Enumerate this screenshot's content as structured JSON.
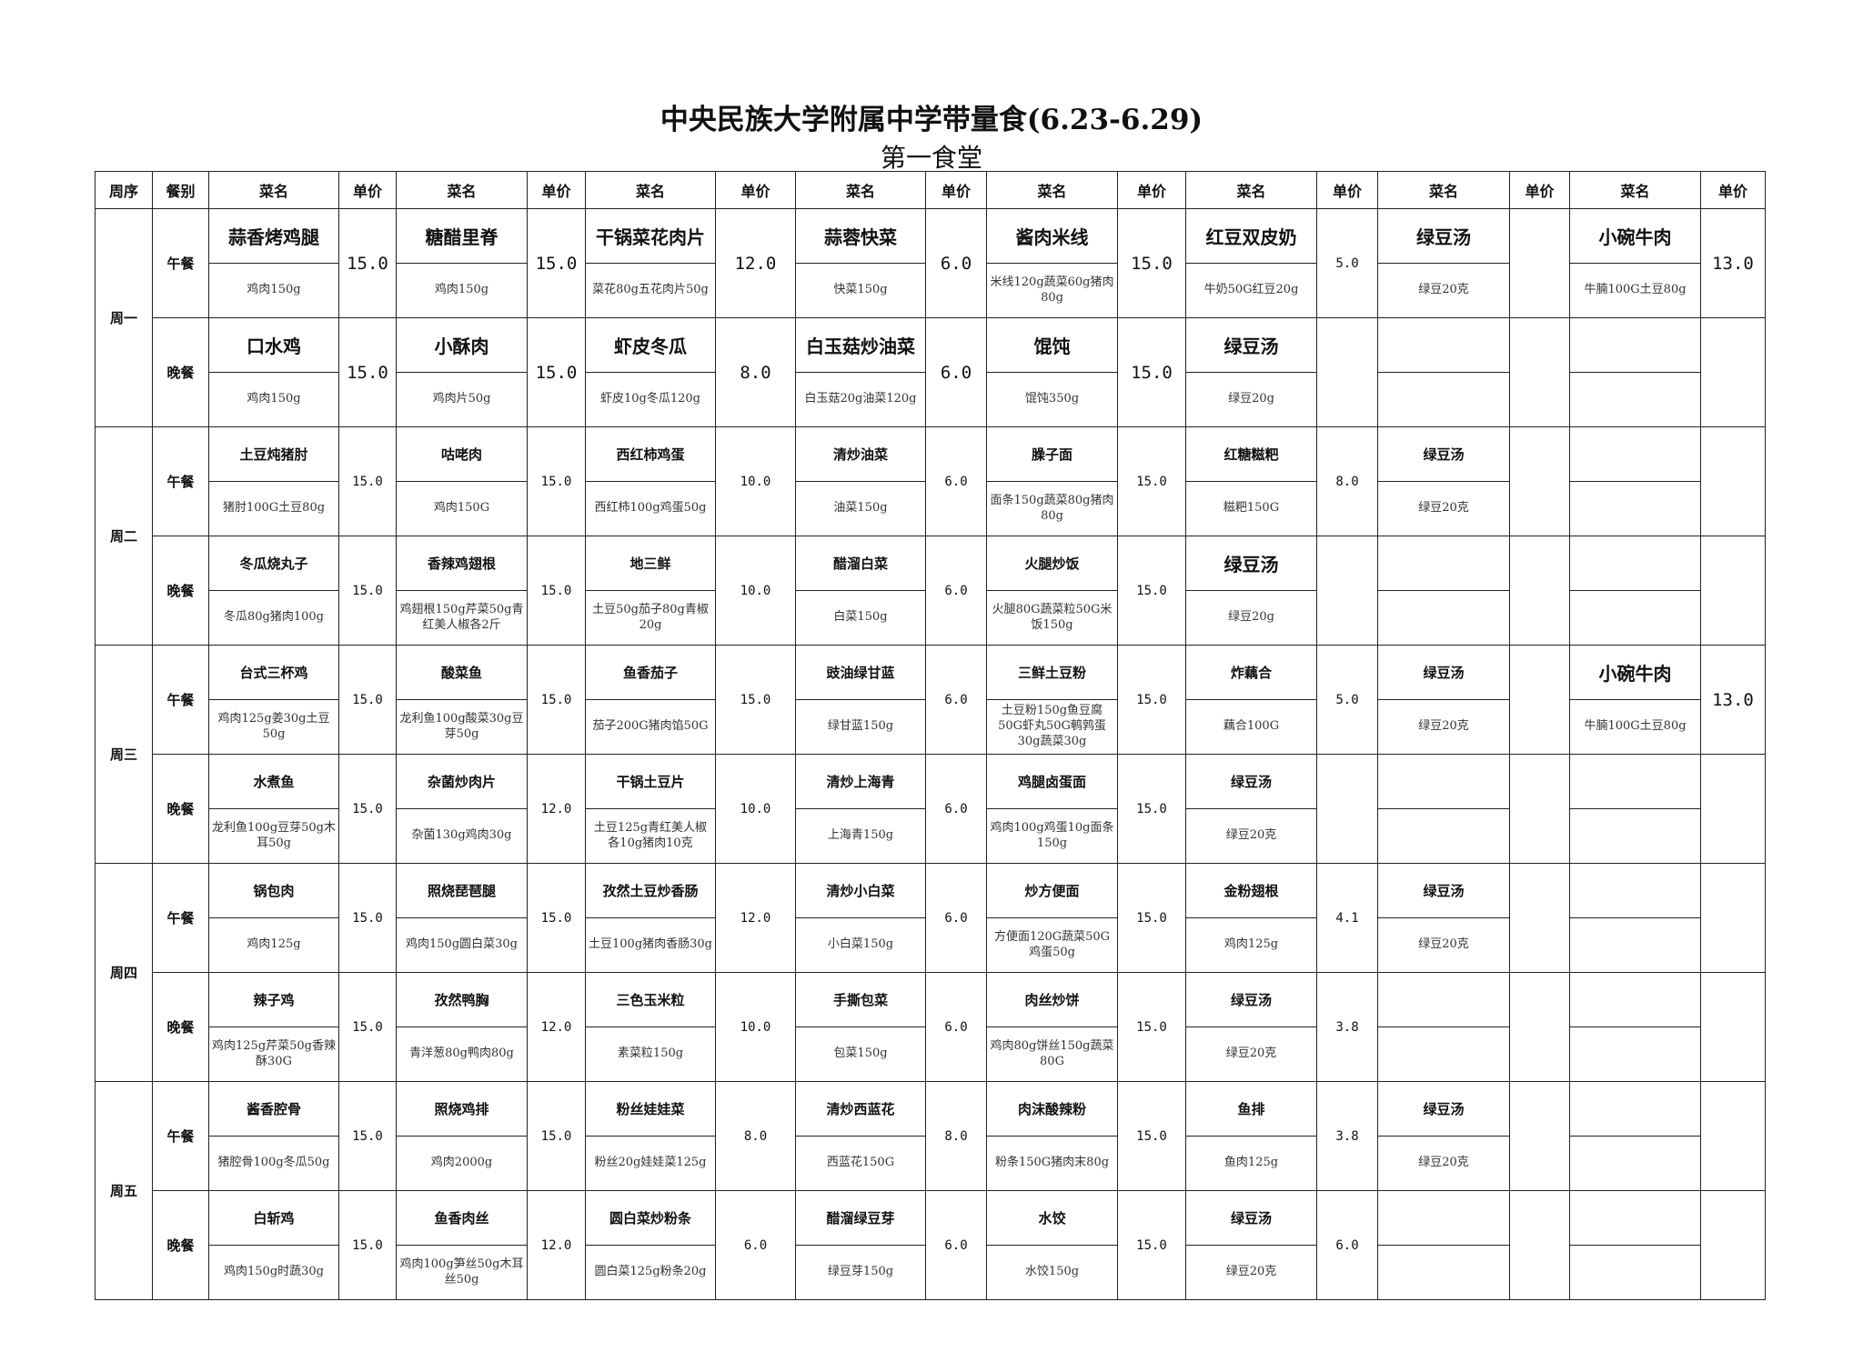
{
  "title": "中央民族大学附属中学带量食(6.23-6.29)",
  "subtitle": "第一食堂",
  "headers": {
    "week": "周序",
    "meal": "餐别",
    "dish": "菜名",
    "price": "单价"
  },
  "days": [
    {
      "label": "周一",
      "meals": [
        {
          "label": "午餐",
          "dishes": [
            {
              "name": "蒜香烤鸡腿",
              "desc": "鸡肉150g",
              "price": "15.0",
              "large": true
            },
            {
              "name": "糖醋里脊",
              "desc": "鸡肉150g",
              "price": "15.0",
              "large": true
            },
            {
              "name": "干锅菜花肉片",
              "desc": "菜花80g五花肉片50g",
              "price": "12.0",
              "large": true
            },
            {
              "name": "蒜蓉快菜",
              "desc": "快菜150g",
              "price": "6.0",
              "large": true
            },
            {
              "name": "酱肉米线",
              "desc": "米线120g蔬菜60g猪肉80g",
              "price": "15.0",
              "large": true
            },
            {
              "name": "红豆双皮奶",
              "desc": "牛奶50G红豆20g",
              "price": "5.0",
              "large": true
            },
            {
              "name": "绿豆汤",
              "desc": "绿豆20克",
              "price": "",
              "large": true
            },
            {
              "name": "小碗牛肉",
              "desc": "牛腩100G土豆80g",
              "price": "13.0",
              "large": true
            }
          ]
        },
        {
          "label": "晚餐",
          "dishes": [
            {
              "name": "口水鸡",
              "desc": "鸡肉150g",
              "price": "15.0",
              "large": true
            },
            {
              "name": "小酥肉",
              "desc": "鸡肉片50g",
              "price": "15.0",
              "large": true
            },
            {
              "name": "虾皮冬瓜",
              "desc": "虾皮10g冬瓜120g",
              "price": "8.0",
              "large": true
            },
            {
              "name": "白玉菇炒油菜",
              "desc": "白玉菇20g油菜120g",
              "price": "6.0",
              "large": true
            },
            {
              "name": "馄饨",
              "desc": "馄饨350g",
              "price": "15.0",
              "large": true
            },
            {
              "name": "绿豆汤",
              "desc": "绿豆20g",
              "price": "",
              "large": true
            },
            {
              "name": "",
              "desc": "",
              "price": ""
            },
            {
              "name": "",
              "desc": "",
              "price": ""
            }
          ]
        }
      ]
    },
    {
      "label": "周二",
      "meals": [
        {
          "label": "午餐",
          "dishes": [
            {
              "name": "土豆炖猪肘",
              "desc": "猪肘100G土豆80g",
              "price": "15.0"
            },
            {
              "name": "咕咾肉",
              "desc": "鸡肉150G",
              "price": "15.0"
            },
            {
              "name": "西红柿鸡蛋",
              "desc": "西红柿100g鸡蛋50g",
              "price": "10.0"
            },
            {
              "name": "清炒油菜",
              "desc": "油菜150g",
              "price": "6.0"
            },
            {
              "name": "臊子面",
              "desc": "面条150g蔬菜80g猪肉80g",
              "price": "15.0"
            },
            {
              "name": "红糖糍粑",
              "desc": "糍粑150G",
              "price": "8.0"
            },
            {
              "name": "绿豆汤",
              "desc": "绿豆20克",
              "price": ""
            },
            {
              "name": "",
              "desc": "",
              "price": ""
            }
          ]
        },
        {
          "label": "晚餐",
          "dishes": [
            {
              "name": "冬瓜烧丸子",
              "desc": "冬瓜80g猪肉100g",
              "price": "15.0"
            },
            {
              "name": "香辣鸡翅根",
              "desc": "鸡翅根150g芹菜50g青红美人椒各2斤",
              "price": "15.0"
            },
            {
              "name": "地三鲜",
              "desc": "土豆50g茄子80g青椒20g",
              "price": "10.0"
            },
            {
              "name": "醋溜白菜",
              "desc": "白菜150g",
              "price": "6.0"
            },
            {
              "name": "火腿炒饭",
              "desc": "火腿80G蔬菜粒50G米饭150g",
              "price": "15.0"
            },
            {
              "name": "绿豆汤",
              "desc": "绿豆20g",
              "price": "",
              "large": true
            },
            {
              "name": "",
              "desc": "",
              "price": ""
            },
            {
              "name": "",
              "desc": "",
              "price": ""
            }
          ]
        }
      ]
    },
    {
      "label": "周三",
      "meals": [
        {
          "label": "午餐",
          "dishes": [
            {
              "name": "台式三杯鸡",
              "desc": "鸡肉125g姜30g土豆50g",
              "price": "15.0"
            },
            {
              "name": "酸菜鱼",
              "desc": "龙利鱼100g酸菜30g豆芽50g",
              "price": "15.0"
            },
            {
              "name": "鱼香茄子",
              "desc": "茄子200G猪肉馅50G",
              "price": "15.0"
            },
            {
              "name": "豉油绿甘蓝",
              "desc": "绿甘蓝150g",
              "price": "6.0"
            },
            {
              "name": "三鲜土豆粉",
              "desc": "土豆粉150g鱼豆腐50G虾丸50G鹌鹑蛋30g蔬菜30g",
              "price": "15.0"
            },
            {
              "name": "炸藕合",
              "desc": "藕合100G",
              "price": "5.0"
            },
            {
              "name": "绿豆汤",
              "desc": "绿豆20克",
              "price": ""
            },
            {
              "name": "小碗牛肉",
              "desc": "牛腩100G土豆80g",
              "price": "13.0",
              "large": true
            }
          ]
        },
        {
          "label": "晚餐",
          "dishes": [
            {
              "name": "水煮鱼",
              "desc": "龙利鱼100g豆芽50g木耳50g",
              "price": "15.0"
            },
            {
              "name": "杂菌炒肉片",
              "desc": "杂菌130g鸡肉30g",
              "price": "12.0"
            },
            {
              "name": "干锅土豆片",
              "desc": "土豆125g青红美人椒各10g猪肉10克",
              "price": "10.0"
            },
            {
              "name": "清炒上海青",
              "desc": "上海青150g",
              "price": "6.0"
            },
            {
              "name": "鸡腿卤蛋面",
              "desc": "鸡肉100g鸡蛋10g面条150g",
              "price": "15.0"
            },
            {
              "name": "绿豆汤",
              "desc": "绿豆20克",
              "price": ""
            },
            {
              "name": "",
              "desc": "",
              "price": ""
            },
            {
              "name": "",
              "desc": "",
              "price": ""
            }
          ]
        }
      ]
    },
    {
      "label": "周四",
      "meals": [
        {
          "label": "午餐",
          "dishes": [
            {
              "name": "锅包肉",
              "desc": "鸡肉125g",
              "price": "15.0"
            },
            {
              "name": "照烧琵琶腿",
              "desc": "鸡肉150g圆白菜30g",
              "price": "15.0"
            },
            {
              "name": "孜然土豆炒香肠",
              "desc": "土豆100g猪肉香肠30g",
              "price": "12.0"
            },
            {
              "name": "清炒小白菜",
              "desc": "小白菜150g",
              "price": "6.0"
            },
            {
              "name": "炒方便面",
              "desc": "方便面120G蔬菜50G鸡蛋50g",
              "price": "15.0"
            },
            {
              "name": "金粉翅根",
              "desc": "鸡肉125g",
              "price": "4.1"
            },
            {
              "name": "绿豆汤",
              "desc": "绿豆20克",
              "price": ""
            },
            {
              "name": "",
              "desc": "",
              "price": ""
            }
          ]
        },
        {
          "label": "晚餐",
          "dishes": [
            {
              "name": "辣子鸡",
              "desc": "鸡肉125g芹菜50g香辣酥30G",
              "price": "15.0"
            },
            {
              "name": "孜然鸭胸",
              "desc": "青洋葱80g鸭肉80g",
              "price": "12.0"
            },
            {
              "name": "三色玉米粒",
              "desc": "素菜粒150g",
              "price": "10.0"
            },
            {
              "name": "手撕包菜",
              "desc": "包菜150g",
              "price": "6.0"
            },
            {
              "name": "肉丝炒饼",
              "desc": "鸡肉80g饼丝150g蔬菜80G",
              "price": "15.0"
            },
            {
              "name": "绿豆汤",
              "desc": "绿豆20克",
              "price": "3.8"
            },
            {
              "name": "",
              "desc": "",
              "price": ""
            },
            {
              "name": "",
              "desc": "",
              "price": ""
            }
          ]
        }
      ]
    },
    {
      "label": "周五",
      "meals": [
        {
          "label": "午餐",
          "dishes": [
            {
              "name": "酱香腔骨",
              "desc": "猪腔骨100g冬瓜50g",
              "price": "15.0"
            },
            {
              "name": "照烧鸡排",
              "desc": "鸡肉2000g",
              "price": "15.0"
            },
            {
              "name": "粉丝娃娃菜",
              "desc": "粉丝20g娃娃菜125g",
              "price": "8.0"
            },
            {
              "name": "清炒西蓝花",
              "desc": "西蓝花150G",
              "price": "8.0"
            },
            {
              "name": "肉沫酸辣粉",
              "desc": "粉条150G猪肉末80g",
              "price": "15.0"
            },
            {
              "name": "鱼排",
              "desc": "鱼肉125g",
              "price": "3.8"
            },
            {
              "name": "绿豆汤",
              "desc": "绿豆20克",
              "price": ""
            },
            {
              "name": "",
              "desc": "",
              "price": ""
            }
          ]
        },
        {
          "label": "晚餐",
          "dishes": [
            {
              "name": "白斩鸡",
              "desc": "鸡肉150g时蔬30g",
              "price": "15.0"
            },
            {
              "name": "鱼香肉丝",
              "desc": "鸡肉100g笋丝50g木耳丝50g",
              "price": "12.0"
            },
            {
              "name": "圆白菜炒粉条",
              "desc": "圆白菜125g粉条20g",
              "price": "6.0"
            },
            {
              "name": "醋溜绿豆芽",
              "desc": "绿豆芽150g",
              "price": "6.0"
            },
            {
              "name": "水饺",
              "desc": "水饺150g",
              "price": "15.0"
            },
            {
              "name": "绿豆汤",
              "desc": "绿豆20克",
              "price": "6.0"
            },
            {
              "name": "",
              "desc": "",
              "price": ""
            },
            {
              "name": "",
              "desc": "",
              "price": ""
            }
          ]
        }
      ]
    }
  ]
}
